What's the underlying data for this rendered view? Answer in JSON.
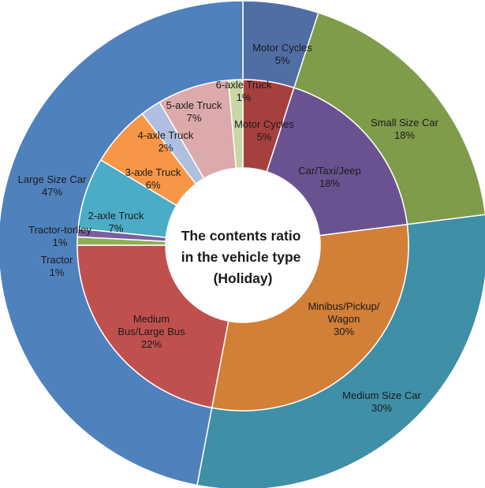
{
  "chart_data": {
    "type": "donut",
    "title_lines": [
      "The contents ratio",
      "in the vehicle type",
      "(Holiday)"
    ],
    "outer_ring": {
      "unit": "%",
      "categories": [
        "Motor Cycles",
        "Small Size Car",
        "Medium Size Car",
        "Large Size Car"
      ],
      "values": [
        5,
        18,
        30,
        47
      ],
      "value_labels": [
        "5%",
        "18%",
        "30%",
        "47%"
      ],
      "colors": [
        "#4f6ea4",
        "#7e9c4a",
        "#3f8fa6",
        "#4f81bd"
      ]
    },
    "inner_ring": {
      "unit": "%",
      "categories": [
        "Motor Cycles",
        "Car/Taxi/Jeep",
        "Minibus/Pickup/Wagon",
        "Medium Bus/Large Bus",
        "Tractor",
        "Tractor-torlley",
        "2-axle Truck",
        "3-axle Truck",
        "4-axle Truck",
        "5-axle Truck",
        "6-axle Truck"
      ],
      "values": [
        5,
        18,
        30,
        22,
        0.8,
        0.8,
        7,
        6,
        2,
        7,
        1.4
      ],
      "value_labels": [
        "5%",
        "18%",
        "30%",
        "22%",
        "1%",
        "1%",
        "7%",
        "6%",
        "2%",
        "7%",
        "1%"
      ],
      "label_lines": [
        [
          "Motor Cycles",
          "5%"
        ],
        [
          "Car/Taxi/Jeep",
          "18%"
        ],
        [
          "Minibus/Pickup/",
          "Wagon",
          "30%"
        ],
        [
          "Medium",
          "Bus/Large Bus",
          "22%"
        ],
        [
          "Tractor",
          "1%"
        ],
        [
          "Tractor-torlley",
          "1%"
        ],
        [
          "2-axle Truck",
          "7%"
        ],
        [
          "3-axle Truck",
          "6%"
        ],
        [
          "4-axle Truck",
          "2%"
        ],
        [
          "5-axle Truck",
          "7%"
        ],
        [
          "6-axle Truck",
          "1%"
        ]
      ],
      "colors": [
        "#a6403f",
        "#6a5290",
        "#d27f37",
        "#c0504d",
        "#8fae53",
        "#7a5fa1",
        "#4bacc6",
        "#f79646",
        "#aebfdf",
        "#dcaaaa",
        "#c9d7a4"
      ]
    }
  }
}
